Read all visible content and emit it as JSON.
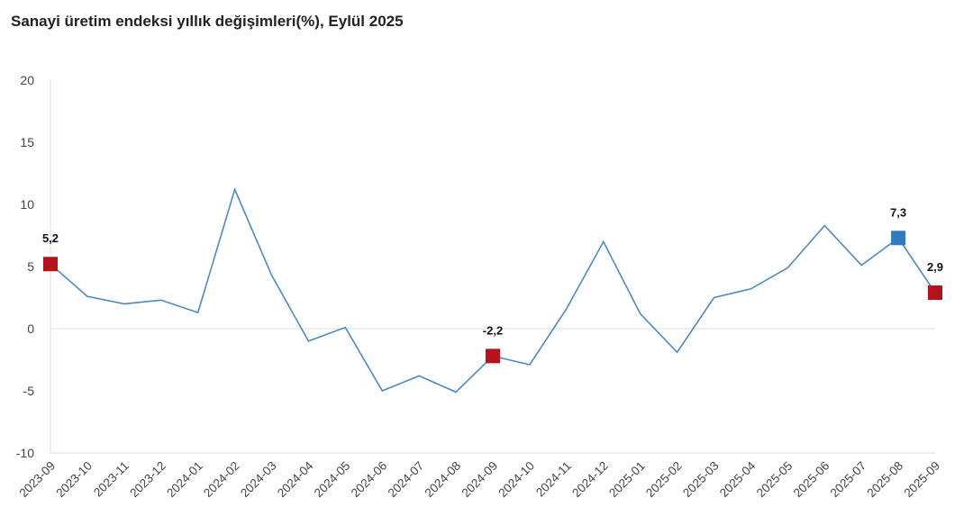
{
  "title": "Sanayi üretim endeksi yıllık değişimleri(%), Eylül 2025",
  "colors": {
    "line": "#4a8ac4",
    "highlight_red": "#b5121b",
    "highlight_blue": "#2f7bc1",
    "grid": "#e3e3e3"
  },
  "chart_data": {
    "type": "line",
    "title": "Sanayi üretim endeksi yıllık değişimleri(%), Eylül 2025",
    "xlabel": "",
    "ylabel": "",
    "ylim": [
      -10,
      20
    ],
    "yticks": [
      20,
      15,
      10,
      5,
      0,
      -5,
      -10
    ],
    "grid": "horizontal at 0 and -10 only",
    "legend": "none",
    "categories": [
      "2023-09",
      "2023-10",
      "2023-11",
      "2023-12",
      "2024-01",
      "2024-02",
      "2024-03",
      "2024-04",
      "2024-05",
      "2024-06",
      "2024-07",
      "2024-08",
      "2024-09",
      "2024-10",
      "2024-11",
      "2024-12",
      "2025-01",
      "2025-02",
      "2025-03",
      "2025-04",
      "2025-05",
      "2025-06",
      "2025-07",
      "2025-08",
      "2025-09"
    ],
    "series": [
      {
        "name": "Sanayi üretim endeksi yıllık değişim (%)",
        "values": [
          5.2,
          2.6,
          2.0,
          2.3,
          1.3,
          11.2,
          4.3,
          -1.0,
          0.1,
          -5.0,
          -3.8,
          -5.1,
          -2.2,
          -2.9,
          1.6,
          7.0,
          1.2,
          -1.9,
          2.5,
          3.2,
          4.9,
          8.3,
          5.1,
          7.3,
          2.9
        ]
      }
    ],
    "annotations": [
      {
        "category": "2023-09",
        "label": "5,2",
        "marker": "square",
        "color": "#b5121b"
      },
      {
        "category": "2024-09",
        "label": "-2,2",
        "marker": "square",
        "color": "#b5121b"
      },
      {
        "category": "2025-08",
        "label": "7,3",
        "marker": "square",
        "color": "#2f7bc1"
      },
      {
        "category": "2025-09",
        "label": "2,9",
        "marker": "square",
        "color": "#b5121b"
      }
    ]
  }
}
